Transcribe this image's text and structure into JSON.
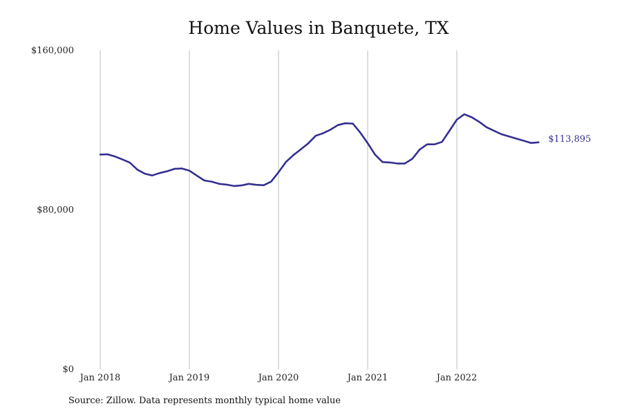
{
  "chart_data": {
    "type": "line",
    "title": "Home Values in Banquete, TX",
    "xlabel": "",
    "ylabel": "",
    "ylim": [
      0,
      160000
    ],
    "y_ticks": [
      "$0",
      "$80,000",
      "$160,000"
    ],
    "y_tick_values": [
      0,
      80000,
      160000
    ],
    "x_ticks": [
      "Jan 2018",
      "Jan 2019",
      "Jan 2020",
      "Jan 2021",
      "Jan 2022"
    ],
    "x_tick_values": [
      "2018-01",
      "2019-01",
      "2020-01",
      "2021-01",
      "2022-01"
    ],
    "grid": "vertical at x ticks",
    "legend": "none",
    "line_color": "#332f8f",
    "end_label": "$113,895",
    "series": [
      {
        "x": [
          "2018-01",
          "2018-02",
          "2018-03",
          "2018-04",
          "2018-05",
          "2018-06",
          "2018-07",
          "2018-08",
          "2018-09",
          "2018-10",
          "2018-11",
          "2018-12",
          "2019-01",
          "2019-02",
          "2019-03",
          "2019-04",
          "2019-05",
          "2019-06",
          "2019-07",
          "2019-08",
          "2019-09",
          "2019-10",
          "2019-11",
          "2019-12",
          "2020-01",
          "2020-02",
          "2020-03",
          "2020-04",
          "2020-05",
          "2020-06",
          "2020-07",
          "2020-08",
          "2020-09",
          "2020-10",
          "2020-11",
          "2020-12",
          "2021-01",
          "2021-02",
          "2021-03",
          "2021-04",
          "2021-05",
          "2021-06",
          "2021-07",
          "2021-08",
          "2021-09",
          "2021-10",
          "2021-11",
          "2021-12",
          "2022-01",
          "2022-02",
          "2022-03",
          "2022-04",
          "2022-05",
          "2022-06",
          "2022-07",
          "2022-08",
          "2022-09",
          "2022-10",
          "2022-11",
          "2022-12"
        ],
        "values": [
          107800,
          107900,
          106800,
          105300,
          103700,
          100200,
          98200,
          97300,
          98500,
          99400,
          100600,
          100800,
          99700,
          97200,
          94800,
          94200,
          93100,
          92700,
          92000,
          92300,
          93100,
          92600,
          92400,
          94200,
          98900,
          104100,
          107500,
          110400,
          113400,
          117200,
          118500,
          120300,
          122600,
          123500,
          123300,
          118800,
          113500,
          107700,
          104000,
          103800,
          103300,
          103300,
          105600,
          110300,
          112900,
          112900,
          114100,
          119700,
          125300,
          128000,
          126500,
          124200,
          121500,
          119700,
          118000,
          116900,
          115800,
          114700,
          113600,
          113895
        ]
      }
    ]
  },
  "footer": {
    "source": "Source: Zillow. Data represents monthly typical home value"
  }
}
